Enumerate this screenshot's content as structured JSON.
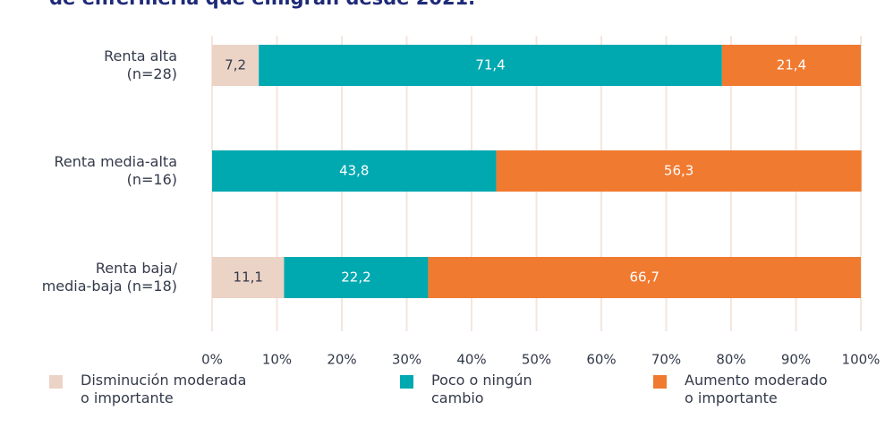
{
  "chart_data": {
    "type": "stacked_bar_horizontal",
    "title": "de enfermería que emigran desde 2021.",
    "categories": [
      "Renta alta\n(n=28)",
      "Renta media-alta\n(n=16)",
      "Renta baja/\nmedia-baja (n=18)"
    ],
    "series": [
      {
        "name": "Disminución moderada\no importante",
        "color": "#ebd3c6",
        "label_color": "#333a4a",
        "values": [
          7.2,
          null,
          11.1
        ],
        "value_labels": [
          "7,2",
          null,
          "11,1"
        ]
      },
      {
        "name": "Poco o ningún\ncambio",
        "color": "#00a8b0",
        "label_color": "#ffffff",
        "values": [
          71.4,
          43.8,
          22.2
        ],
        "value_labels": [
          "71,4",
          "43,8",
          "22,2"
        ]
      },
      {
        "name": "Aumento moderado\no importante",
        "color": "#f07a30",
        "label_color": "#ffffff",
        "values": [
          21.4,
          56.3,
          66.7
        ],
        "value_labels": [
          "21,4",
          "56,3",
          "66,7"
        ]
      }
    ],
    "xlim": [
      0,
      100
    ],
    "xticks": [
      {
        "value": 0,
        "label": "0%"
      },
      {
        "value": 10,
        "label": "10%"
      },
      {
        "value": 20,
        "label": "20%"
      },
      {
        "value": 30,
        "label": "30%"
      },
      {
        "value": 40,
        "label": "40%"
      },
      {
        "value": 50,
        "label": "50%"
      },
      {
        "value": 60,
        "label": "60%"
      },
      {
        "value": 70,
        "label": "70%"
      },
      {
        "value": 80,
        "label": "80%"
      },
      {
        "value": 90,
        "label": "90%"
      },
      {
        "value": 100,
        "label": "100%"
      }
    ],
    "grid": true
  }
}
